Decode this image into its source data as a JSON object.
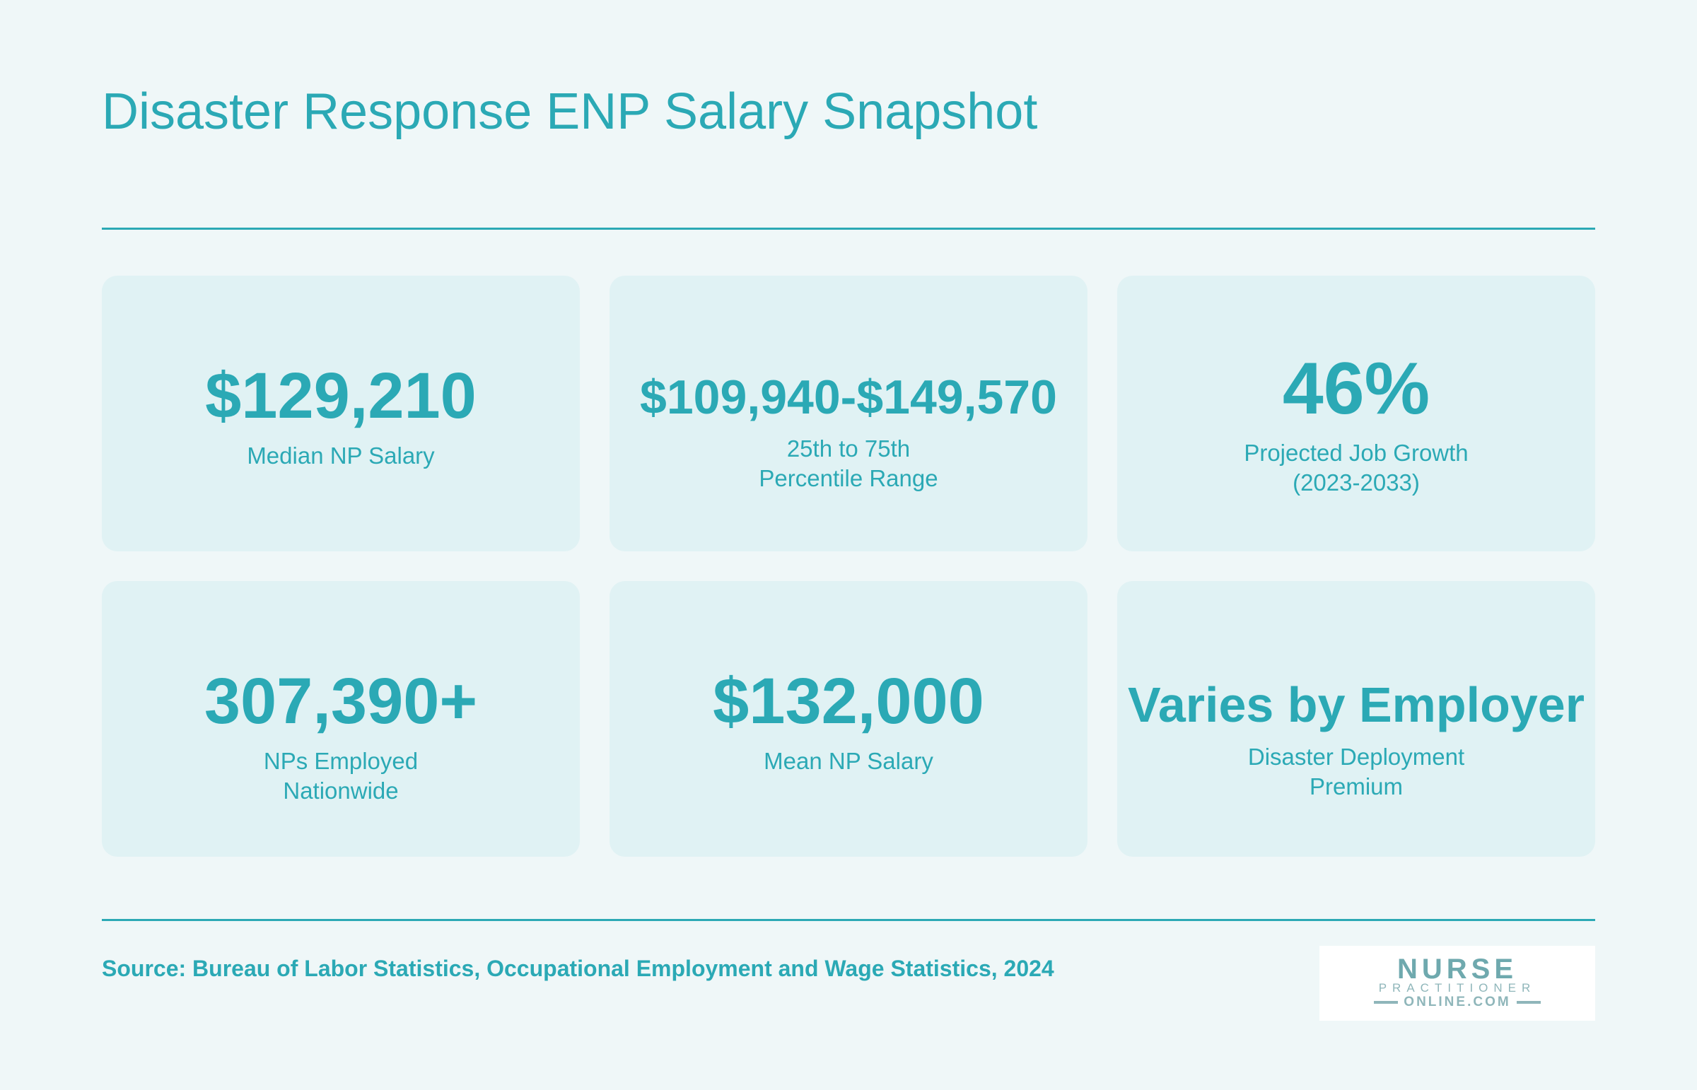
{
  "title": "Disaster Response ENP Salary Snapshot",
  "cards": [
    {
      "value": "$129,210",
      "label": "Median NP Salary"
    },
    {
      "value": "$109,940-$149,570",
      "label": "25th to 75th\nPercentile Range"
    },
    {
      "value": "46%",
      "label": "Projected Job Growth\n(2023-2033)"
    },
    {
      "value": "307,390+",
      "label": "NPs Employed\nNationwide"
    },
    {
      "value": "$132,000",
      "label": "Mean NP Salary"
    },
    {
      "value": "Varies by Employer",
      "label": "Disaster Deployment\nPremium"
    }
  ],
  "source": "Source: Bureau of Labor Statistics, Occupational Employment and Wage Statistics, 2024",
  "logo": {
    "main": "NURSE",
    "sub": "PRACTITIONER",
    "url": "ONLINE.COM"
  },
  "colors": {
    "accent": "#2ba9b5",
    "background": "#eff7f8",
    "card": "#e0f2f4"
  }
}
